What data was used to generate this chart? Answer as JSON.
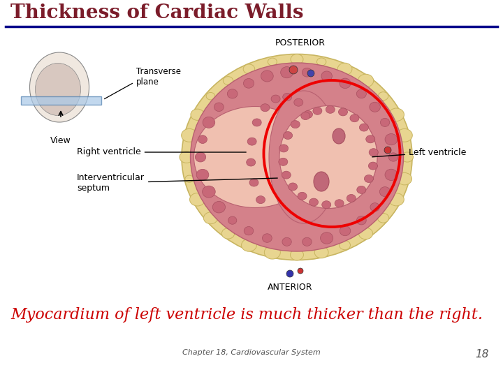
{
  "title": "Thickness of Cardiac Walls",
  "title_color": "#7B1C2A",
  "title_fontsize": 20,
  "title_fontstyle": "bold",
  "divider_color": "#00008B",
  "divider_linewidth": 2.5,
  "subtitle": "Myocardium of left ventricle is much thicker than the right.",
  "subtitle_color": "#CC0000",
  "subtitle_fontsize": 16,
  "footer_text": "Chapter 18, Cardiovascular System",
  "footer_number": "18",
  "footer_color": "#555555",
  "footer_fontsize": 8,
  "bg_color": "#FFFFFF",
  "posterior_label": "POSTERIOR",
  "anterior_label": "ANTERIOR",
  "transverse_label": "Transverse\nplane",
  "view_label": "View",
  "right_ventricle_label": "Right ventricle",
  "interventricular_label": "Interventricular\nseptum",
  "left_ventricle_label": "Left ventricle",
  "red_circle_color": "#EE0000",
  "red_circle_linewidth": 2.8,
  "label_fontsize": 9,
  "anatomy_label_fontsize": 9,
  "fat_color": "#E8D590",
  "fat_edge": "#C8B560",
  "myo_color": "#D4818A",
  "myo_edge": "#B86070",
  "lumen_color": "#F0C0B0",
  "bump_color": "#C86878",
  "bump_edge": "#A85060"
}
